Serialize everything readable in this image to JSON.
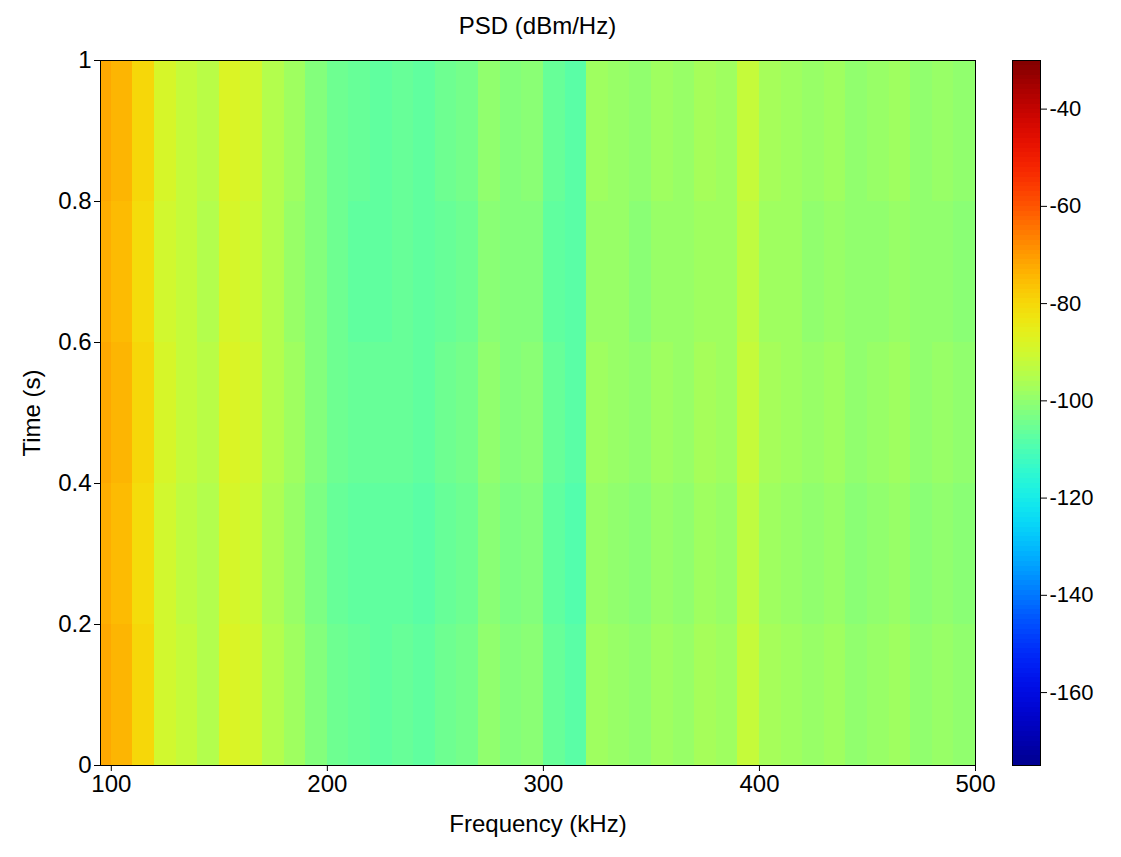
{
  "chart_data": {
    "type": "heatmap",
    "title": "PSD (dBm/Hz)",
    "x_label": "Frequency (kHz)",
    "y_label": "Time (s)",
    "xlim": [
      95,
      500
    ],
    "xticks": [
      100,
      200,
      300,
      400,
      500
    ],
    "ylim": [
      0,
      1
    ],
    "yticks": [
      0,
      0.2,
      0.4,
      0.6,
      0.8,
      1
    ],
    "color": "jet",
    "x_edges": [
      95,
      100,
      110,
      120,
      130,
      140,
      150,
      160,
      170,
      180,
      190,
      200,
      210,
      220,
      230,
      240,
      250,
      260,
      270,
      280,
      290,
      300,
      310,
      320,
      330,
      340,
      350,
      360,
      370,
      380,
      390,
      400,
      410,
      420,
      430,
      440,
      450,
      460,
      470,
      480,
      490,
      500
    ],
    "y_edges": [
      0,
      0.2,
      0.4,
      0.6,
      0.8,
      1
    ],
    "cells": [
      [
        -72,
        -74,
        -80,
        -90,
        -92,
        -95,
        -88,
        -90,
        -95,
        -98,
        -102,
        -105,
        -106,
        -107,
        -106,
        -107,
        -105,
        -104,
        -100,
        -102,
        -101,
        -106,
        -108,
        -98,
        -99,
        -100,
        -98,
        -99,
        -97,
        -98,
        -92,
        -97,
        -98,
        -99,
        -98,
        -100,
        -99,
        -98,
        -100,
        -99,
        -100
      ],
      [
        -73,
        -75,
        -81,
        -90,
        -93,
        -95,
        -89,
        -91,
        -96,
        -99,
        -103,
        -106,
        -107,
        -107,
        -107,
        -108,
        -106,
        -105,
        -101,
        -103,
        -102,
        -107,
        -109,
        -99,
        -100,
        -101,
        -99,
        -100,
        -98,
        -99,
        -93,
        -98,
        -99,
        -100,
        -99,
        -101,
        -100,
        -99,
        -101,
        -100,
        -101
      ],
      [
        -72,
        -74,
        -80,
        -89,
        -92,
        -94,
        -88,
        -90,
        -95,
        -98,
        -102,
        -105,
        -106,
        -106,
        -106,
        -107,
        -105,
        -104,
        -100,
        -102,
        -101,
        -106,
        -108,
        -98,
        -99,
        -100,
        -98,
        -99,
        -97,
        -98,
        -92,
        -97,
        -98,
        -99,
        -98,
        -100,
        -99,
        -98,
        -100,
        -99,
        -100
      ],
      [
        -73,
        -75,
        -81,
        -90,
        -92,
        -95,
        -89,
        -91,
        -95,
        -99,
        -102,
        -105,
        -107,
        -107,
        -106,
        -107,
        -106,
        -105,
        -101,
        -102,
        -102,
        -107,
        -108,
        -99,
        -99,
        -101,
        -99,
        -99,
        -98,
        -98,
        -93,
        -98,
        -98,
        -100,
        -99,
        -100,
        -100,
        -99,
        -100,
        -100,
        -101
      ],
      [
        -72,
        -74,
        -80,
        -89,
        -92,
        -94,
        -88,
        -90,
        -95,
        -98,
        -102,
        -105,
        -106,
        -107,
        -106,
        -107,
        -105,
        -104,
        -100,
        -102,
        -101,
        -106,
        -108,
        -98,
        -99,
        -100,
        -98,
        -99,
        -97,
        -98,
        -92,
        -97,
        -98,
        -99,
        -98,
        -100,
        -99,
        -98,
        -100,
        -99,
        -100
      ]
    ],
    "color_range": [
      -175,
      -30
    ],
    "color_ticks": [
      -40,
      -60,
      -80,
      -100,
      -120,
      -140,
      -160
    ]
  }
}
